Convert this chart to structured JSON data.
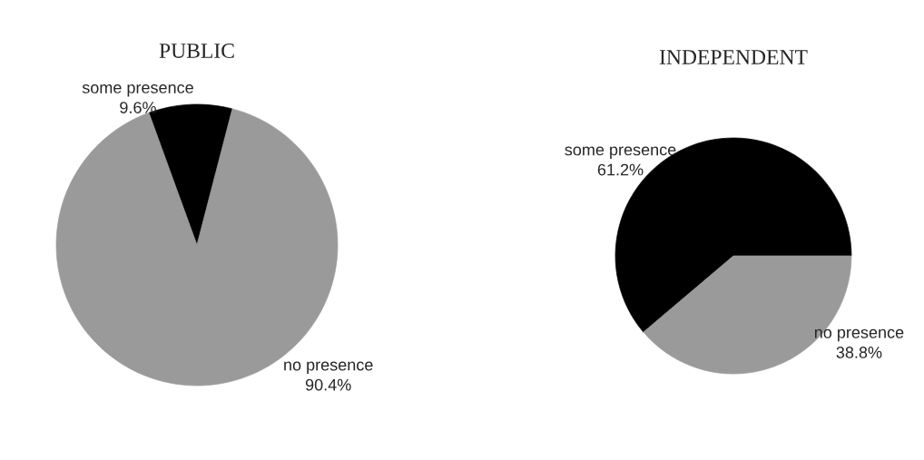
{
  "chart_data": [
    {
      "type": "pie",
      "title": "PUBLIC",
      "categories": [
        "some presence",
        "no presence"
      ],
      "values": [
        9.6,
        90.4
      ],
      "colors": [
        "#000000",
        "#9a9a9a"
      ],
      "value_labels": [
        "9.6%",
        "90.4%"
      ],
      "legend": false
    },
    {
      "type": "pie",
      "title": "INDEPENDENT",
      "categories": [
        "some presence",
        "no presence"
      ],
      "values": [
        61.2,
        38.8
      ],
      "colors": [
        "#000000",
        "#9a9a9a"
      ],
      "value_labels": [
        "61.2%",
        "38.8%"
      ],
      "legend": false
    }
  ]
}
